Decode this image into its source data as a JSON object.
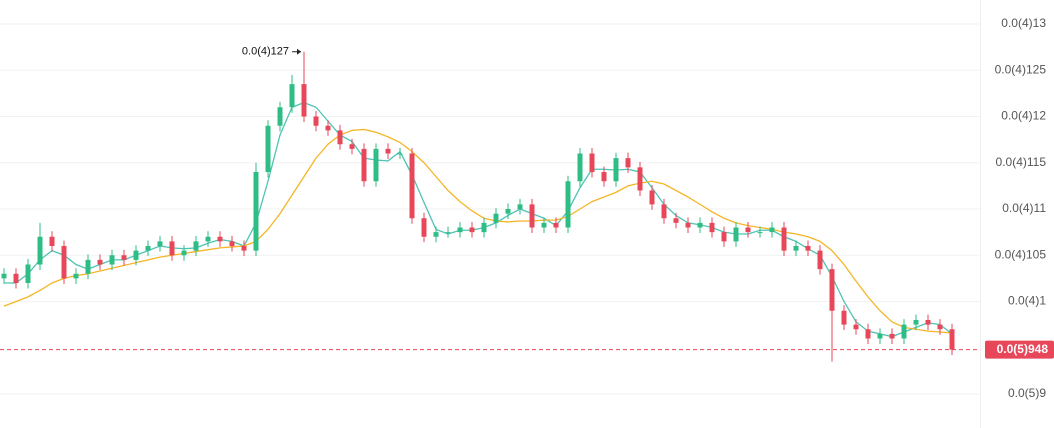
{
  "chart_data": {
    "type": "candlestick",
    "open": [
      1.025e-05,
      1.03e-05,
      1.02e-05,
      1.04e-05,
      1.07e-05,
      1.06e-05,
      1.025e-05,
      1.03e-05,
      1.045e-05,
      1.04e-05,
      1.05e-05,
      1.045e-05,
      1.055e-05,
      1.06e-05,
      1.065e-05,
      1.05e-05,
      1.055e-05,
      1.065e-05,
      1.07e-05,
      1.065e-05,
      1.06e-05,
      1.055e-05,
      1.14e-05,
      1.19e-05,
      1.21e-05,
      1.235e-05,
      1.2e-05,
      1.19e-05,
      1.185e-05,
      1.17e-05,
      1.165e-05,
      1.13e-05,
      1.165e-05,
      1.16e-05,
      1.16e-05,
      1.09e-05,
      1.07e-05,
      1.075e-05,
      1.075e-05,
      1.08e-05,
      1.075e-05,
      1.085e-05,
      1.095e-05,
      1.1e-05,
      1.105e-05,
      1.08e-05,
      1.085e-05,
      1.08e-05,
      1.13e-05,
      1.16e-05,
      1.14e-05,
      1.13e-05,
      1.155e-05,
      1.145e-05,
      1.12e-05,
      1.105e-05,
      1.09e-05,
      1.085e-05,
      1.08e-05,
      1.085e-05,
      1.075e-05,
      1.065e-05,
      1.08e-05,
      1.075e-05,
      1.075e-05,
      1.08e-05,
      1.055e-05,
      1.06e-05,
      1.055e-05,
      1.035e-05,
      9.9e-06,
      9.75e-06,
      9.7e-06,
      9.6e-06,
      9.65e-06,
      9.6e-06,
      9.75e-06,
      9.8e-06,
      9.75e-06,
      9.7e-06
    ],
    "high": [
      1.036e-05,
      1.036e-05,
      1.046e-05,
      1.085e-05,
      1.076e-05,
      1.066e-05,
      1.036e-05,
      1.051e-05,
      1.051e-05,
      1.056e-05,
      1.056e-05,
      1.061e-05,
      1.066e-05,
      1.071e-05,
      1.071e-05,
      1.061e-05,
      1.071e-05,
      1.076e-05,
      1.076e-05,
      1.071e-05,
      1.066e-05,
      1.15e-05,
      1.196e-05,
      1.216e-05,
      1.245e-05,
      1.27e-05,
      1.206e-05,
      1.196e-05,
      1.191e-05,
      1.176e-05,
      1.171e-05,
      1.171e-05,
      1.171e-05,
      1.166e-05,
      1.166e-05,
      1.096e-05,
      1.081e-05,
      1.081e-05,
      1.086e-05,
      1.086e-05,
      1.091e-05,
      1.101e-05,
      1.106e-05,
      1.111e-05,
      1.111e-05,
      1.091e-05,
      1.091e-05,
      1.136e-05,
      1.166e-05,
      1.166e-05,
      1.146e-05,
      1.161e-05,
      1.161e-05,
      1.151e-05,
      1.126e-05,
      1.111e-05,
      1.096e-05,
      1.091e-05,
      1.091e-05,
      1.091e-05,
      1.081e-05,
      1.086e-05,
      1.086e-05,
      1.081e-05,
      1.086e-05,
      1.086e-05,
      1.066e-05,
      1.066e-05,
      1.061e-05,
      1.041e-05,
      9.96e-06,
      9.81e-06,
      9.76e-06,
      9.71e-06,
      9.71e-06,
      9.81e-06,
      9.86e-06,
      9.86e-06,
      9.81e-06,
      9.76e-06
    ],
    "low": [
      1.019e-05,
      1.014e-05,
      1.014e-05,
      1.034e-05,
      1.054e-05,
      1.019e-05,
      1.019e-05,
      1.024e-05,
      1.034e-05,
      1.034e-05,
      1.039e-05,
      1.039e-05,
      1.049e-05,
      1.054e-05,
      1.044e-05,
      1.044e-05,
      1.049e-05,
      1.059e-05,
      1.059e-05,
      1.054e-05,
      1.049e-05,
      1.049e-05,
      1.134e-05,
      1.184e-05,
      1.204e-05,
      1.194e-05,
      1.184e-05,
      1.179e-05,
      1.164e-05,
      1.159e-05,
      1.124e-05,
      1.124e-05,
      1.154e-05,
      1.154e-05,
      1.084e-05,
      1.064e-05,
      1.064e-05,
      1.069e-05,
      1.069e-05,
      1.069e-05,
      1.069e-05,
      1.079e-05,
      1.089e-05,
      1.094e-05,
      1.074e-05,
      1.074e-05,
      1.074e-05,
      1.074e-05,
      1.124e-05,
      1.134e-05,
      1.124e-05,
      1.124e-05,
      1.139e-05,
      1.114e-05,
      1.099e-05,
      1.084e-05,
      1.079e-05,
      1.074e-05,
      1.074e-05,
      1.069e-05,
      1.059e-05,
      1.059e-05,
      1.069e-05,
      1.069e-05,
      1.069e-05,
      1.049e-05,
      1.049e-05,
      1.049e-05,
      1.029e-05,
      9.35e-06,
      9.69e-06,
      9.64e-06,
      9.54e-06,
      9.54e-06,
      9.54e-06,
      9.54e-06,
      9.69e-06,
      9.69e-06,
      9.64e-06,
      9.42e-06
    ],
    "close": [
      1.03e-05,
      1.02e-05,
      1.04e-05,
      1.07e-05,
      1.06e-05,
      1.025e-05,
      1.03e-05,
      1.045e-05,
      1.04e-05,
      1.05e-05,
      1.045e-05,
      1.055e-05,
      1.06e-05,
      1.065e-05,
      1.05e-05,
      1.055e-05,
      1.065e-05,
      1.07e-05,
      1.065e-05,
      1.06e-05,
      1.055e-05,
      1.14e-05,
      1.19e-05,
      1.21e-05,
      1.235e-05,
      1.2e-05,
      1.19e-05,
      1.185e-05,
      1.17e-05,
      1.165e-05,
      1.13e-05,
      1.165e-05,
      1.16e-05,
      1.16e-05,
      1.09e-05,
      1.07e-05,
      1.075e-05,
      1.075e-05,
      1.08e-05,
      1.075e-05,
      1.085e-05,
      1.095e-05,
      1.1e-05,
      1.105e-05,
      1.08e-05,
      1.085e-05,
      1.08e-05,
      1.13e-05,
      1.16e-05,
      1.14e-05,
      1.13e-05,
      1.155e-05,
      1.145e-05,
      1.12e-05,
      1.105e-05,
      1.09e-05,
      1.085e-05,
      1.08e-05,
      1.085e-05,
      1.075e-05,
      1.065e-05,
      1.08e-05,
      1.075e-05,
      1.075e-05,
      1.08e-05,
      1.055e-05,
      1.06e-05,
      1.055e-05,
      1.035e-05,
      9.9e-06,
      9.75e-06,
      9.7e-06,
      9.6e-06,
      9.65e-06,
      9.6e-06,
      9.75e-06,
      9.8e-06,
      9.75e-06,
      9.7e-06,
      9.48e-06
    ],
    "up_color": "#2ebd85",
    "down_color": "#e8475a",
    "moving_averages": [
      {
        "color": "#4fc3b4",
        "values": [
          1.02e-05,
          1.02e-05,
          1.03e-05,
          1.045e-05,
          1.055e-05,
          1.05e-05,
          1.04e-05,
          1.035e-05,
          1.04e-05,
          1.045e-05,
          1.045e-05,
          1.05e-05,
          1.055e-05,
          1.06e-05,
          1.058e-05,
          1.057e-05,
          1.058e-05,
          1.063e-05,
          1.067e-05,
          1.065e-05,
          1.06e-05,
          1.085e-05,
          1.13e-05,
          1.18e-05,
          1.21e-05,
          1.215e-05,
          1.21e-05,
          1.195e-05,
          1.18e-05,
          1.173e-05,
          1.155e-05,
          1.153e-05,
          1.152e-05,
          1.162e-05,
          1.137e-05,
          1.107e-05,
          1.078e-05,
          1.073e-05,
          1.077e-05,
          1.077e-05,
          1.08e-05,
          1.085e-05,
          1.093e-05,
          1.1e-05,
          1.095e-05,
          1.09e-05,
          1.082e-05,
          1.098e-05,
          1.123e-05,
          1.143e-05,
          1.143e-05,
          1.142e-05,
          1.143e-05,
          1.14e-05,
          1.123e-05,
          1.105e-05,
          1.093e-05,
          1.085e-05,
          1.083e-05,
          1.08e-05,
          1.075e-05,
          1.073e-05,
          1.073e-05,
          1.077e-05,
          1.077e-05,
          1.07e-05,
          1.065e-05,
          1.057e-05,
          1.05e-05,
          1.027e-05,
          1e-05,
          9.78e-06,
          9.68e-06,
          9.65e-06,
          9.62e-06,
          9.67e-06,
          9.72e-06,
          9.77e-06,
          9.75e-06,
          9.65e-06
        ]
      },
      {
        "color": "#f5b526",
        "values": [
          9.95e-06,
          1e-05,
          1.005e-05,
          1.012e-05,
          1.02e-05,
          1.025e-05,
          1.028e-05,
          1.03e-05,
          1.033e-05,
          1.036e-05,
          1.039e-05,
          1.042e-05,
          1.045e-05,
          1.048e-05,
          1.05e-05,
          1.052e-05,
          1.054e-05,
          1.056e-05,
          1.058e-05,
          1.059e-05,
          1.06e-05,
          1.065e-05,
          1.078e-05,
          1.095e-05,
          1.115e-05,
          1.135e-05,
          1.155e-05,
          1.17e-05,
          1.18e-05,
          1.185e-05,
          1.186e-05,
          1.183e-05,
          1.178e-05,
          1.172e-05,
          1.162e-05,
          1.15e-05,
          1.135e-05,
          1.12e-05,
          1.108e-05,
          1.098e-05,
          1.09e-05,
          1.087e-05,
          1.086e-05,
          1.087e-05,
          1.087e-05,
          1.088e-05,
          1.088e-05,
          1.092e-05,
          1.1e-05,
          1.108e-05,
          1.113e-05,
          1.118e-05,
          1.125e-05,
          1.128e-05,
          1.13e-05,
          1.127e-05,
          1.12e-05,
          1.113e-05,
          1.105e-05,
          1.097e-05,
          1.09e-05,
          1.085e-05,
          1.082e-05,
          1.08e-05,
          1.078e-05,
          1.075e-05,
          1.073e-05,
          1.07e-05,
          1.065e-05,
          1.055e-05,
          1.04e-05,
          1.022e-05,
          1.005e-05,
          9.9e-06,
          9.78e-06,
          9.72e-06,
          9.7e-06,
          9.68e-06,
          9.67e-06,
          9.66e-06
        ]
      }
    ],
    "ylim": [
      8.8e-06,
      1.32e-05
    ],
    "yticks": [
      {
        "value": 1.3e-05,
        "label": "0.0(4)13"
      },
      {
        "value": 1.25e-05,
        "label": "0.0(4)125"
      },
      {
        "value": 1.2e-05,
        "label": "0.0(4)12"
      },
      {
        "value": 1.15e-05,
        "label": "0.0(4)115"
      },
      {
        "value": 1.1e-05,
        "label": "0.0(4)11"
      },
      {
        "value": 1.05e-05,
        "label": "0.0(4)105"
      },
      {
        "value": 1e-05,
        "label": "0.0(4)1"
      },
      {
        "value": 9e-06,
        "label": "0.0(5)9"
      }
    ],
    "grid": true,
    "last_price": {
      "value": 9.48e-06,
      "label": "0.0(5)948"
    },
    "last_price_color": "#e8475a",
    "max_annotation": {
      "value": 1.27e-05,
      "label": "0.0(4)127"
    }
  }
}
